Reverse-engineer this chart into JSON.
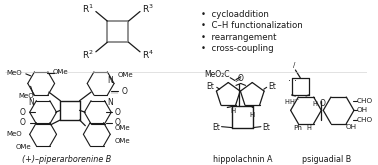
{
  "background_color": "#ffffff",
  "bullet_points": [
    "cycloaddition",
    "C–H functionalization",
    "rearrangement",
    "cross-coupling"
  ],
  "compound_labels": [
    "(+)–piperarborenine B",
    "hippolachnin A",
    "psiguadial B"
  ],
  "bullet_fontsize": 6.0,
  "label_fontsize": 5.8,
  "fig_width": 3.78,
  "fig_height": 1.65,
  "text_color": "#1a1a1a",
  "bond_color": "#1a1a1a",
  "gray_color": "#888888"
}
